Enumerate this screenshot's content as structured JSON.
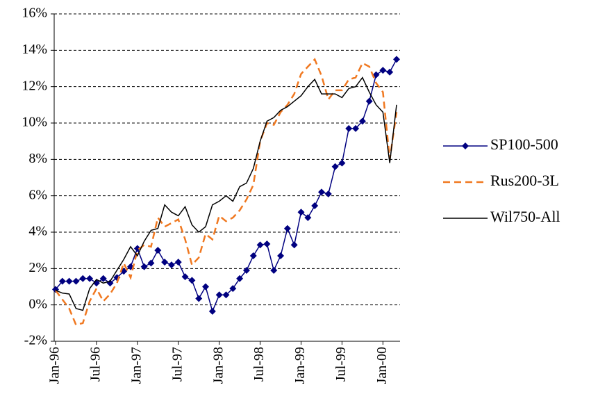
{
  "chart_data": {
    "type": "line",
    "categories": [
      "Jan-96",
      null,
      null,
      null,
      null,
      null,
      "Jul-96",
      null,
      null,
      null,
      null,
      null,
      "Jan-97",
      null,
      null,
      null,
      null,
      null,
      "Jul-97",
      null,
      null,
      null,
      null,
      null,
      "Jan-98",
      null,
      null,
      null,
      null,
      null,
      "Jul-98",
      null,
      null,
      null,
      null,
      null,
      "Jan-99",
      null,
      null,
      null,
      null,
      null,
      "Jul-99",
      null,
      null,
      null,
      null,
      null,
      "Jan-00",
      null,
      null
    ],
    "series": [
      {
        "name": "SP100-500",
        "color": "#000080",
        "style": "solid",
        "marker": "diamond",
        "values": [
          0.85,
          1.3,
          1.3,
          1.3,
          1.45,
          1.45,
          1.2,
          1.45,
          1.2,
          1.5,
          1.85,
          2.1,
          3.1,
          2.1,
          2.3,
          3.0,
          2.35,
          2.2,
          2.35,
          1.55,
          1.35,
          0.35,
          1.0,
          -0.35,
          0.55,
          0.55,
          0.9,
          1.45,
          1.9,
          2.7,
          3.3,
          3.35,
          1.9,
          2.7,
          4.2,
          3.3,
          5.1,
          4.8,
          5.45,
          6.2,
          6.1,
          7.6,
          7.8,
          9.7,
          9.7,
          10.1,
          11.2,
          12.65,
          12.9,
          12.8,
          13.5
        ]
      },
      {
        "name": "Rus200-3L",
        "color": "#f07820",
        "style": "dashed",
        "marker": "none",
        "values": [
          0.8,
          0.3,
          -0.2,
          -1.1,
          -1.0,
          0.2,
          0.9,
          0.2,
          0.6,
          1.2,
          2.3,
          1.5,
          3.0,
          3.3,
          3.2,
          4.8,
          4.3,
          4.5,
          4.7,
          3.6,
          2.2,
          2.6,
          3.9,
          3.6,
          4.9,
          4.6,
          4.8,
          5.2,
          5.8,
          6.6,
          9.0,
          10.0,
          9.9,
          10.6,
          11.0,
          11.6,
          12.7,
          13.1,
          13.5,
          12.6,
          11.3,
          11.8,
          11.8,
          12.4,
          12.5,
          13.3,
          13.1,
          12.2,
          11.7,
          8.0,
          10.6
        ]
      },
      {
        "name": "Wil750-All",
        "color": "#000000",
        "style": "solid",
        "marker": "none",
        "values": [
          0.8,
          0.65,
          0.6,
          -0.2,
          -0.3,
          0.9,
          1.4,
          1.2,
          1.3,
          1.9,
          2.5,
          3.2,
          2.7,
          3.5,
          4.1,
          4.2,
          5.5,
          5.1,
          4.9,
          5.4,
          4.4,
          4.0,
          4.3,
          5.5,
          5.7,
          6.0,
          5.7,
          6.5,
          6.7,
          7.5,
          9.0,
          10.1,
          10.3,
          10.7,
          10.9,
          11.2,
          11.5,
          12.0,
          12.4,
          11.6,
          11.6,
          11.6,
          11.4,
          11.9,
          12.0,
          12.5,
          11.7,
          11.0,
          10.6,
          7.8,
          11.0
        ]
      }
    ],
    "ylim": [
      -2,
      16
    ],
    "yticks": [
      {
        "value": -2,
        "label": "-2%"
      },
      {
        "value": 0,
        "label": "0%"
      },
      {
        "value": 2,
        "label": "2%"
      },
      {
        "value": 4,
        "label": "4%"
      },
      {
        "value": 6,
        "label": "6%"
      },
      {
        "value": 8,
        "label": "8%"
      },
      {
        "value": 10,
        "label": "10%"
      },
      {
        "value": 12,
        "label": "12%"
      },
      {
        "value": 14,
        "label": "14%"
      },
      {
        "value": 16,
        "label": "16%"
      }
    ],
    "grid": true,
    "legend": "right"
  }
}
